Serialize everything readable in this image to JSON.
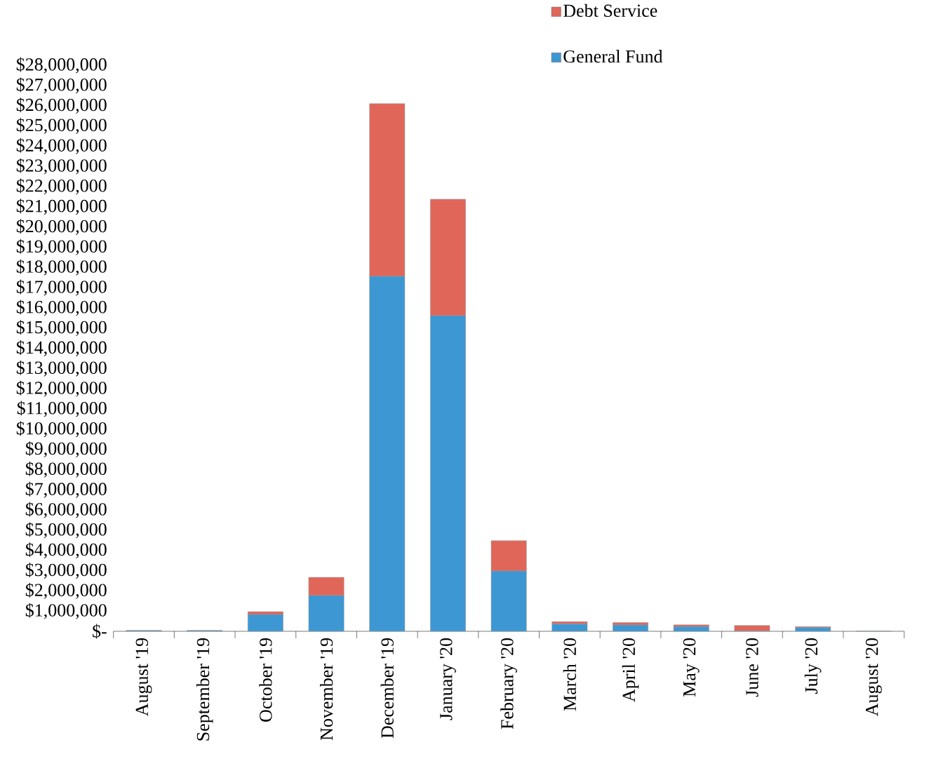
{
  "chart_data": {
    "type": "bar",
    "stacked": true,
    "legend": "top right",
    "categories": [
      "August '19",
      "September '19",
      "October '19",
      "November '19",
      "December '19",
      "January '20",
      "February '20",
      "March '20",
      "April '20",
      "May '20",
      "June '20",
      "July '20",
      "August '20"
    ],
    "series": [
      {
        "name": "General Fund",
        "color": "#3d97d3",
        "values": [
          30000,
          30000,
          830000,
          1770000,
          17560000,
          15610000,
          2980000,
          360000,
          310000,
          230000,
          20000,
          180000,
          10000
        ]
      },
      {
        "name": "Debt Service",
        "color": "#e0665a",
        "values": [
          10000,
          10000,
          140000,
          900000,
          8540000,
          5760000,
          1500000,
          120000,
          120000,
          90000,
          270000,
          50000,
          0
        ]
      }
    ],
    "ylim": [
      0,
      28000000
    ],
    "yticks": [
      {
        "value": 0,
        "label": "$-"
      },
      {
        "value": 1000000,
        "label": "$1,000,000"
      },
      {
        "value": 2000000,
        "label": "$2,000,000"
      },
      {
        "value": 3000000,
        "label": "$3,000,000"
      },
      {
        "value": 4000000,
        "label": "$4,000,000"
      },
      {
        "value": 5000000,
        "label": "$5,000,000"
      },
      {
        "value": 6000000,
        "label": "$6,000,000"
      },
      {
        "value": 7000000,
        "label": "$7,000,000"
      },
      {
        "value": 8000000,
        "label": "$8,000,000"
      },
      {
        "value": 9000000,
        "label": "$9,000,000"
      },
      {
        "value": 10000000,
        "label": "$10,000,000"
      },
      {
        "value": 11000000,
        "label": "$11,000,000"
      },
      {
        "value": 12000000,
        "label": "$12,000,000"
      },
      {
        "value": 13000000,
        "label": "$13,000,000"
      },
      {
        "value": 14000000,
        "label": "$14,000,000"
      },
      {
        "value": 15000000,
        "label": "$15,000,000"
      },
      {
        "value": 16000000,
        "label": "$16,000,000"
      },
      {
        "value": 17000000,
        "label": "$17,000,000"
      },
      {
        "value": 18000000,
        "label": "$18,000,000"
      },
      {
        "value": 19000000,
        "label": "$19,000,000"
      },
      {
        "value": 20000000,
        "label": "$20,000,000"
      },
      {
        "value": 21000000,
        "label": "$21,000,000"
      },
      {
        "value": 22000000,
        "label": "$22,000,000"
      },
      {
        "value": 23000000,
        "label": "$23,000,000"
      },
      {
        "value": 24000000,
        "label": "$24,000,000"
      },
      {
        "value": 25000000,
        "label": "$25,000,000"
      },
      {
        "value": 26000000,
        "label": "$26,000,000"
      },
      {
        "value": 27000000,
        "label": "$27,000,000"
      },
      {
        "value": 28000000,
        "label": "$28,000,000"
      }
    ]
  }
}
